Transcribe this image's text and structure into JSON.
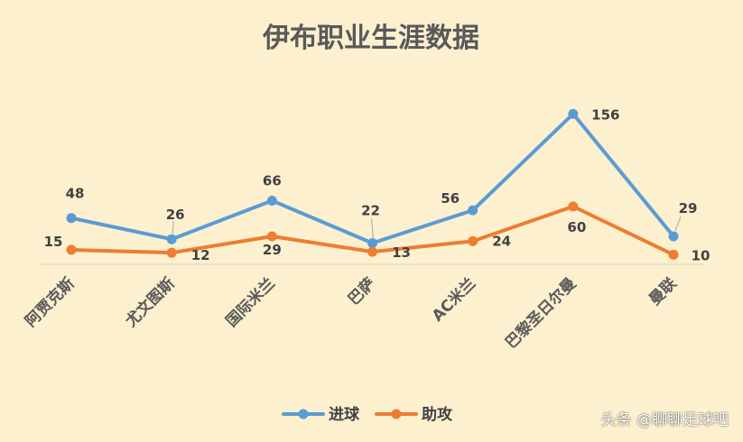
{
  "chart_data": {
    "type": "line",
    "title": "伊布职业生涯数据",
    "categories": [
      "阿贾克斯",
      "尤文图斯",
      "国际米兰",
      "巴萨",
      "AC米兰",
      "巴黎圣日尔曼",
      "曼联"
    ],
    "series": [
      {
        "name": "进球",
        "values": [
          48,
          26,
          66,
          22,
          56,
          156,
          29
        ],
        "color": "#5b9bd5"
      },
      {
        "name": "助攻",
        "values": [
          15,
          12,
          29,
          13,
          24,
          60,
          10
        ],
        "color": "#ed7d31"
      }
    ],
    "xlabel": "",
    "ylabel": "",
    "ylim": [
      0,
      160
    ],
    "grid": false,
    "legend": "bottom"
  },
  "watermark": "头条 @聊聊足球吧"
}
